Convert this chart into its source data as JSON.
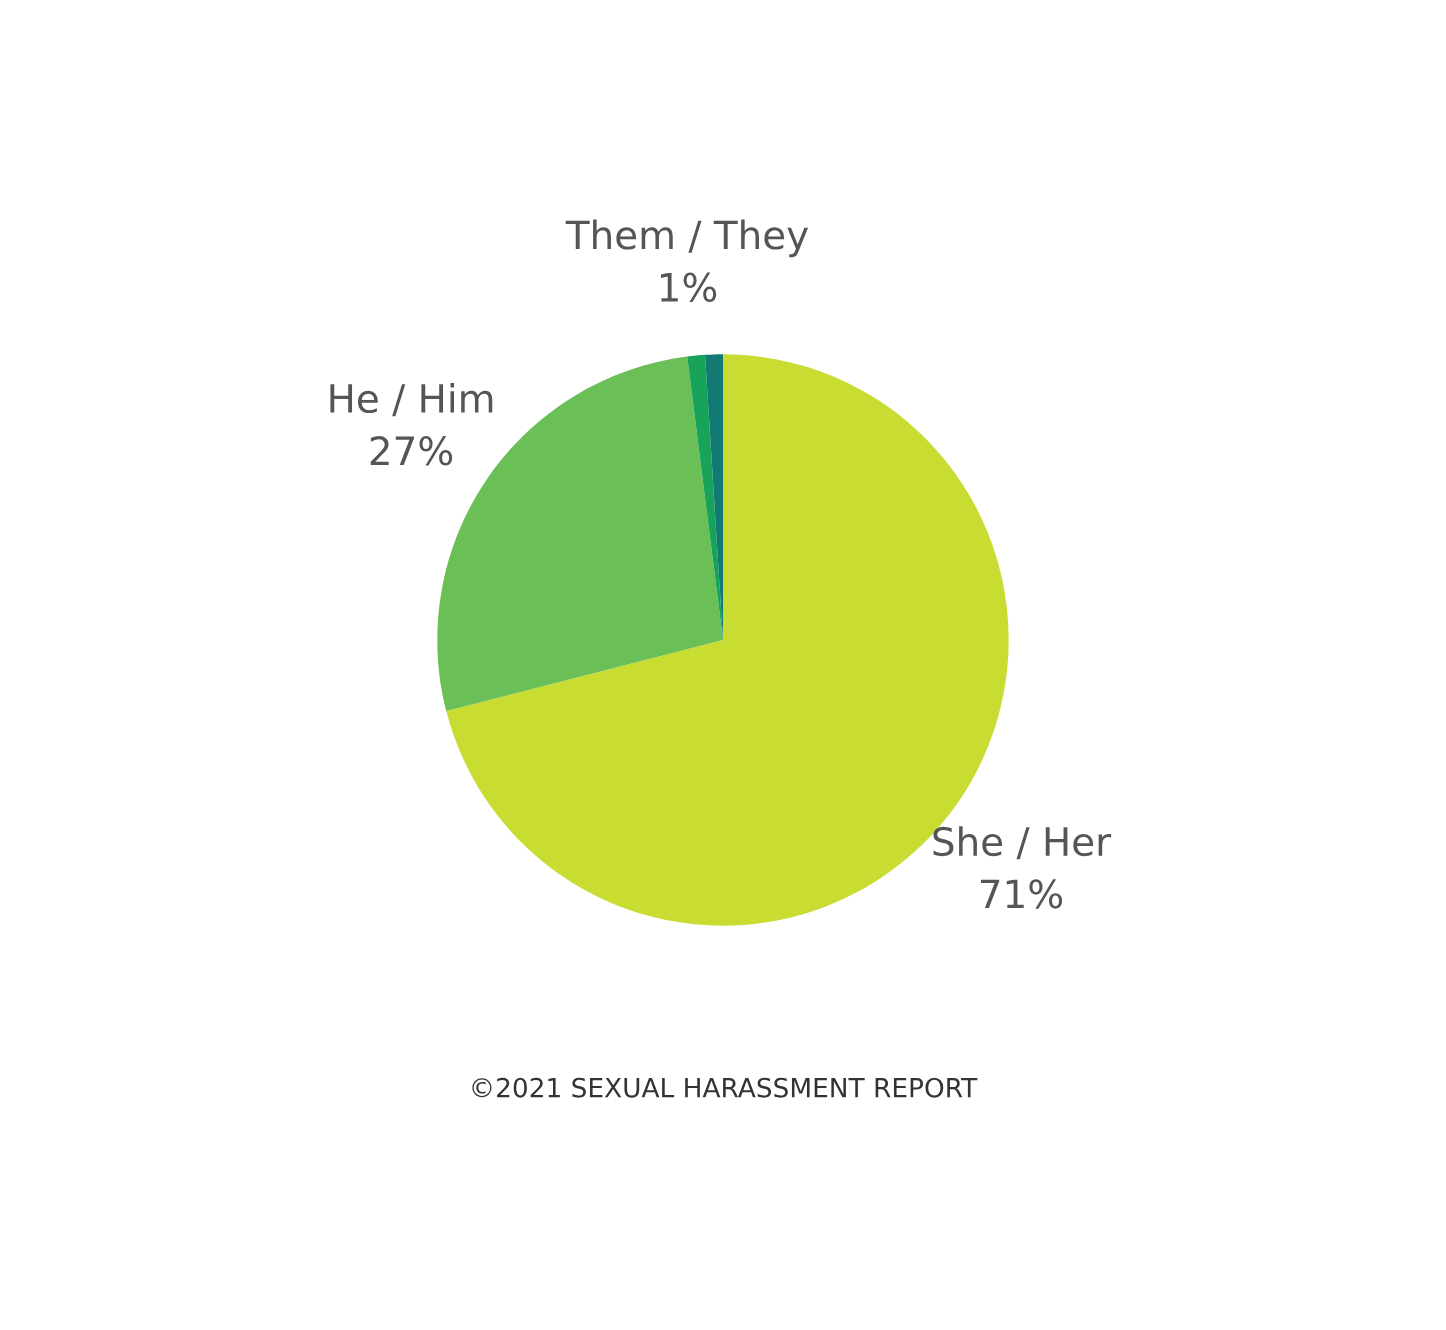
{
  "chart_data": {
    "type": "pie",
    "categories": [
      "She / Her",
      "He / Him",
      "Them / They",
      null
    ],
    "values": [
      71,
      27,
      1,
      1
    ],
    "colors": [
      "#c8dc32",
      "#6abf57",
      "#17a35a",
      "#127a72"
    ],
    "value_labels": [
      "71%",
      "27%",
      "1%",
      null
    ],
    "annotations": [
      "©2021 SEXUAL HARASSMENT REPORT"
    ]
  }
}
